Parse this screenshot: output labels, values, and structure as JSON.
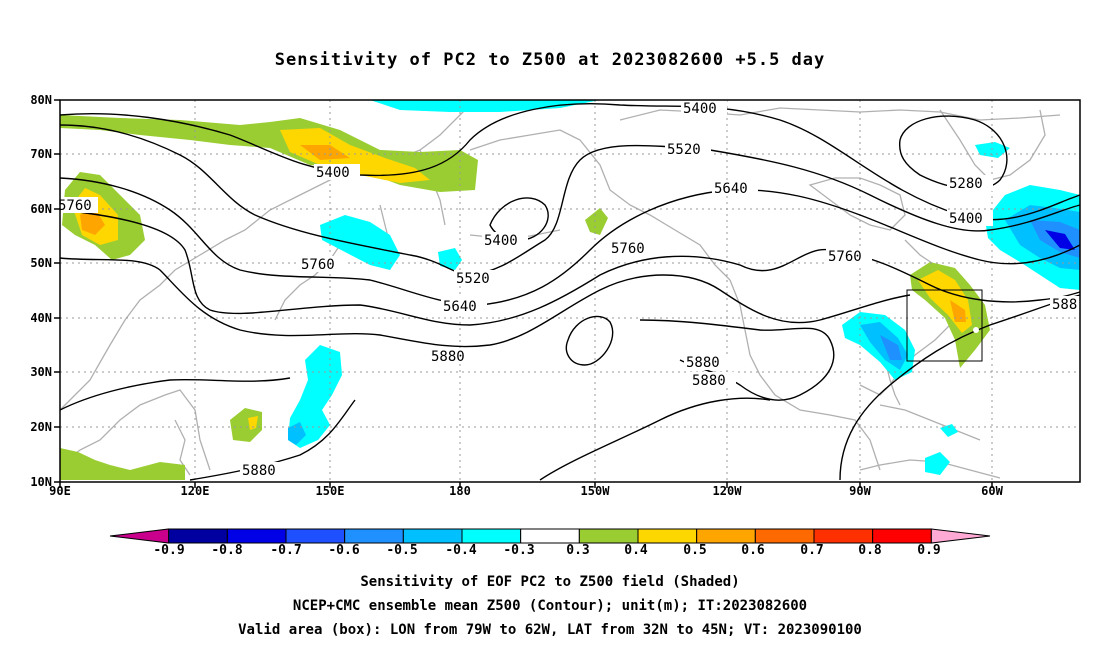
{
  "title": "Sensitivity of PC2 to Z500 at 2023082600 +5.5 day",
  "lat_labels": [
    "80N",
    "70N",
    "60N",
    "50N",
    "40N",
    "30N",
    "20N",
    "10N"
  ],
  "lon_labels": [
    "90E",
    "120E",
    "150E",
    "180",
    "150W",
    "120W",
    "90W",
    "60W"
  ],
  "contour_labels": [
    "5400",
    "5400",
    "5400",
    "5400",
    "5520",
    "5520",
    "5640",
    "5640",
    "5280",
    "5760",
    "5760",
    "5760",
    "5760",
    "5880",
    "5880",
    "5880",
    "5880",
    "588"
  ],
  "colorbar": {
    "labels": [
      "-0.9",
      "-0.8",
      "-0.7",
      "-0.6",
      "-0.5",
      "-0.4",
      "-0.3",
      "0.3",
      "0.4",
      "0.5",
      "0.6",
      "0.7",
      "0.8",
      "0.9"
    ],
    "colors": [
      "#c8008c",
      "#0000a0",
      "#0000e6",
      "#1f50ff",
      "#1e90ff",
      "#00c0ff",
      "#00ffff",
      "#ffffff",
      "#9acd32",
      "#ffd700",
      "#ffa500",
      "#ff6a00",
      "#ff3000",
      "#ff0000",
      "#ffaad4"
    ]
  },
  "footer": {
    "line1": "Sensitivity of EOF PC2 to Z500 field (Shaded)",
    "line2": "NCEP+CMC ensemble mean Z500 (Contour); unit(m); IT:2023082600",
    "line3": "Valid area (box): LON from 79W to 62W, LAT from 32N to 45N; VT: 2023090100"
  }
}
